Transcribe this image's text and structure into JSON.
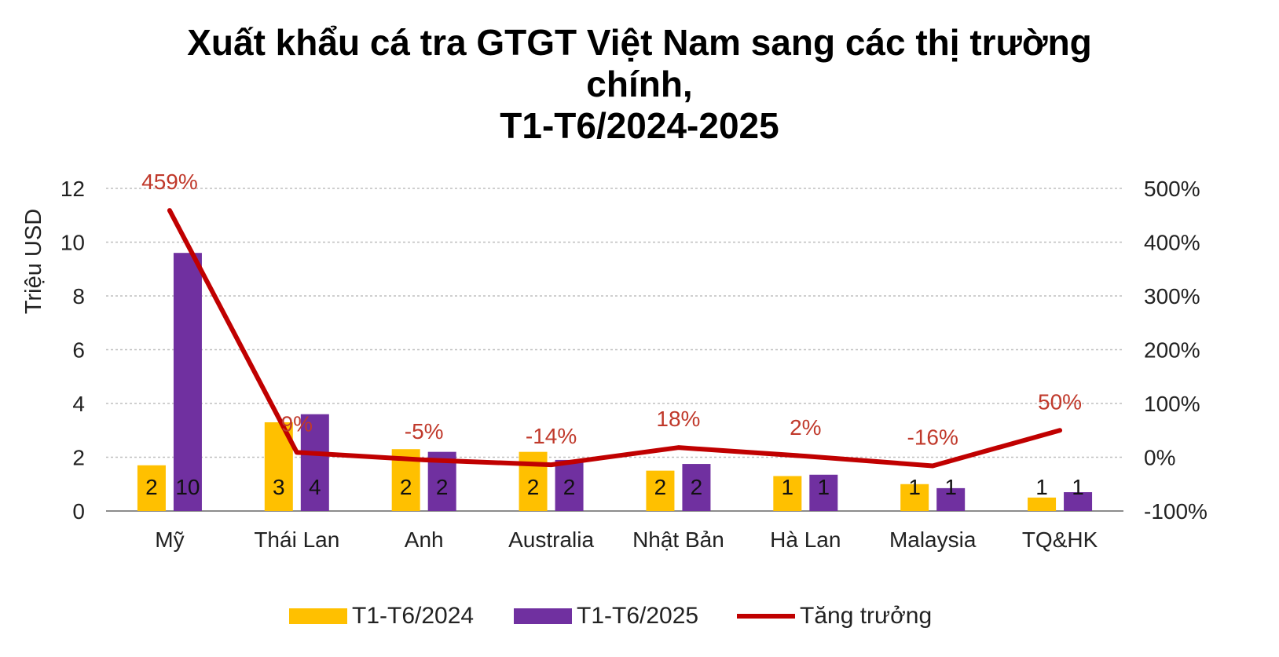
{
  "chart_data": {
    "type": "bar",
    "title_lines": [
      "Xuất khẩu cá tra GTGT Việt Nam sang các thị trường",
      "chính,",
      "T1-T6/2024-2025"
    ],
    "ylabel": "Triệu USD",
    "categories": [
      "Mỹ",
      "Thái Lan",
      "Anh",
      "Australia",
      "Nhật Bản",
      "Hà Lan",
      "Malaysia",
      "TQ&HK"
    ],
    "ylim": [
      0,
      12
    ],
    "y_ticks": [
      "0",
      "2",
      "4",
      "6",
      "8",
      "10",
      "12"
    ],
    "y2lim": [
      -100,
      500
    ],
    "y2_ticks": [
      "-100%",
      "0%",
      "100%",
      "200%",
      "300%",
      "400%",
      "500%"
    ],
    "grid": true,
    "legend_position": "bottom",
    "series": [
      {
        "name": "T1-T6/2024",
        "kind": "bar",
        "axis": "left",
        "color": "#FFC000",
        "values": [
          1.7,
          3.3,
          2.3,
          2.2,
          1.5,
          1.3,
          1.0,
          0.5
        ],
        "labels": [
          "2",
          "3",
          "2",
          "2",
          "2",
          "1",
          "1",
          "1"
        ]
      },
      {
        "name": "T1-T6/2025",
        "kind": "bar",
        "axis": "left",
        "color": "#7030A0",
        "values": [
          9.6,
          3.6,
          2.2,
          1.9,
          1.75,
          1.35,
          0.85,
          0.7
        ],
        "labels": [
          "10",
          "4",
          "2",
          "2",
          "2",
          "1",
          "1",
          "1"
        ]
      },
      {
        "name": "Tăng trưởng",
        "kind": "line",
        "axis": "right",
        "color": "#C00000",
        "values": [
          459,
          9,
          -5,
          -14,
          18,
          2,
          -16,
          50
        ],
        "labels": [
          "459%",
          "9%",
          "-5%",
          "-14%",
          "18%",
          "2%",
          "-16%",
          "50%"
        ]
      }
    ]
  }
}
